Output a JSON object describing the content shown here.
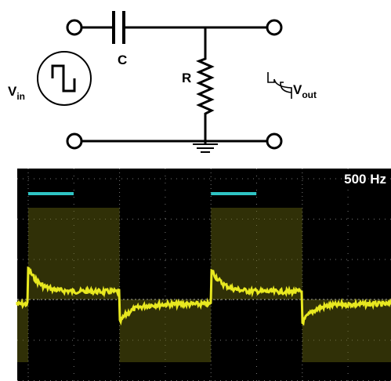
{
  "circuit": {
    "capacitor_label": "C",
    "resistor_label": "R",
    "input_label": {
      "main": "V",
      "subscript": "in"
    },
    "output_label": {
      "main": "V",
      "subscript": "out"
    }
  },
  "scope": {
    "frequency_label": "500 Hz"
  }
}
